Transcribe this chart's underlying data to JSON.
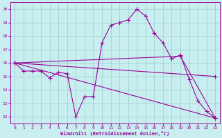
{
  "xlabel": "Windchill (Refroidissement éolien,°C)",
  "background_color": "#c8eef0",
  "line_color": "#990099",
  "grid_color": "#99cccc",
  "xlim": [
    -0.5,
    23.5
  ],
  "ylim": [
    11.5,
    20.5
  ],
  "yticks": [
    12,
    13,
    14,
    15,
    16,
    17,
    18,
    19,
    20
  ],
  "xticks": [
    0,
    1,
    2,
    3,
    4,
    5,
    6,
    7,
    8,
    9,
    10,
    11,
    12,
    13,
    14,
    15,
    16,
    17,
    18,
    19,
    20,
    21,
    22,
    23
  ],
  "line1_x": [
    0,
    1,
    2,
    3,
    4,
    5,
    6,
    7,
    8,
    9,
    10,
    11,
    12,
    13,
    14,
    15,
    16,
    17,
    18,
    19,
    20,
    21,
    22,
    23
  ],
  "line1_y": [
    16.0,
    15.4,
    15.4,
    15.4,
    14.9,
    15.3,
    15.2,
    12.0,
    13.5,
    13.5,
    17.5,
    18.8,
    19.0,
    19.2,
    20.0,
    19.5,
    18.2,
    17.5,
    16.3,
    16.6,
    14.8,
    13.2,
    12.4,
    11.9
  ],
  "line2_x": [
    0,
    23
  ],
  "line2_y": [
    16.0,
    11.9
  ],
  "line3_x": [
    0,
    23
  ],
  "line3_y": [
    16.0,
    15.0
  ],
  "line4_x": [
    0,
    19,
    23
  ],
  "line4_y": [
    16.0,
    16.5,
    11.9
  ]
}
